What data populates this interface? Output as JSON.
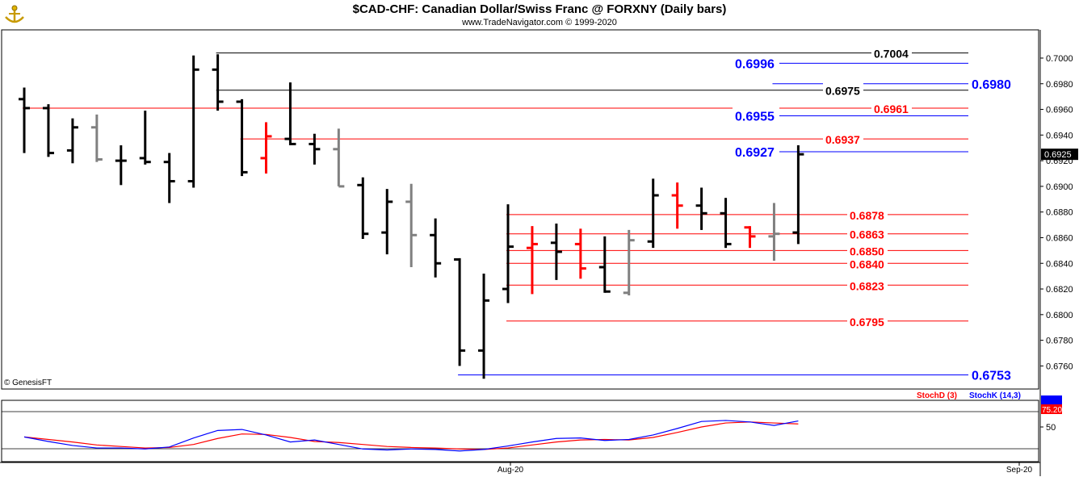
{
  "header": {
    "title": "$CAD-CHF:  Canadian Dollar/Swiss Franc @ FORXNY  (Daily bars)",
    "subtitle": "www.TradeNavigator.com © 1999-2020"
  },
  "copyright": "© GenesisFT",
  "colors": {
    "bar_black": "#000000",
    "bar_red": "#ff0000",
    "bar_gray": "#808080",
    "blue": "#0000ff",
    "red": "#ff0000",
    "black": "#000000",
    "price_panel_bg": "#ffffff"
  },
  "chart_data": [
    {
      "type": "ohlc",
      "title": "$CAD-CHF:  Canadian Dollar/Swiss Franc @ FORXNY  (Daily bars)",
      "ylim": [
        0.6742,
        0.7022
      ],
      "y_ticks": [
        "0.7000",
        "0.6980",
        "0.6960",
        "0.6940",
        "0.6920",
        "0.6900",
        "0.6880",
        "0.6860",
        "0.6840",
        "0.6820",
        "0.6800",
        "0.6780",
        "0.6760"
      ],
      "x_ticks": [
        "Aug-20",
        "Sep-20"
      ],
      "last_price": "0.6925",
      "bars": [
        {
          "o": 0.6968,
          "h": 0.6977,
          "l": 0.6926,
          "c": 0.6961,
          "color": "black"
        },
        {
          "o": 0.6961,
          "h": 0.6964,
          "l": 0.6923,
          "c": 0.6926,
          "color": "black"
        },
        {
          "o": 0.6928,
          "h": 0.6953,
          "l": 0.6918,
          "c": 0.6946,
          "color": "black"
        },
        {
          "o": 0.6946,
          "h": 0.6956,
          "l": 0.6919,
          "c": 0.6921,
          "color": "gray"
        },
        {
          "o": 0.692,
          "h": 0.6932,
          "l": 0.6901,
          "c": 0.692,
          "color": "black"
        },
        {
          "o": 0.6922,
          "h": 0.6959,
          "l": 0.6917,
          "c": 0.6919,
          "color": "black"
        },
        {
          "o": 0.6919,
          "h": 0.6926,
          "l": 0.6887,
          "c": 0.6904,
          "color": "black"
        },
        {
          "o": 0.6904,
          "h": 0.7002,
          "l": 0.6899,
          "c": 0.6991,
          "color": "black"
        },
        {
          "o": 0.6991,
          "h": 0.7003,
          "l": 0.6959,
          "c": 0.6966,
          "color": "black"
        },
        {
          "o": 0.6966,
          "h": 0.6968,
          "l": 0.6908,
          "c": 0.6911,
          "color": "black"
        },
        {
          "o": 0.6922,
          "h": 0.695,
          "l": 0.691,
          "c": 0.6939,
          "color": "red"
        },
        {
          "o": 0.6937,
          "h": 0.6981,
          "l": 0.6932,
          "c": 0.6933,
          "color": "black"
        },
        {
          "o": 0.6933,
          "h": 0.6941,
          "l": 0.6917,
          "c": 0.6929,
          "color": "black"
        },
        {
          "o": 0.6929,
          "h": 0.6945,
          "l": 0.69,
          "c": 0.69,
          "color": "gray"
        },
        {
          "o": 0.6901,
          "h": 0.6907,
          "l": 0.6859,
          "c": 0.6863,
          "color": "black"
        },
        {
          "o": 0.6864,
          "h": 0.6898,
          "l": 0.6847,
          "c": 0.6888,
          "color": "black"
        },
        {
          "o": 0.6888,
          "h": 0.6902,
          "l": 0.6837,
          "c": 0.6862,
          "color": "gray"
        },
        {
          "o": 0.6862,
          "h": 0.6875,
          "l": 0.6829,
          "c": 0.684,
          "color": "black"
        },
        {
          "o": 0.6843,
          "h": 0.6844,
          "l": 0.676,
          "c": 0.6772,
          "color": "black"
        },
        {
          "o": 0.6772,
          "h": 0.6832,
          "l": 0.675,
          "c": 0.6811,
          "color": "black"
        },
        {
          "o": 0.682,
          "h": 0.6886,
          "l": 0.6809,
          "c": 0.6853,
          "color": "black"
        },
        {
          "o": 0.6852,
          "h": 0.6869,
          "l": 0.6816,
          "c": 0.6855,
          "color": "red"
        },
        {
          "o": 0.6856,
          "h": 0.6871,
          "l": 0.6827,
          "c": 0.6849,
          "color": "black"
        },
        {
          "o": 0.6855,
          "h": 0.6867,
          "l": 0.6828,
          "c": 0.6836,
          "color": "red"
        },
        {
          "o": 0.6837,
          "h": 0.6861,
          "l": 0.6817,
          "c": 0.6818,
          "color": "black"
        },
        {
          "o": 0.6817,
          "h": 0.6866,
          "l": 0.6815,
          "c": 0.6858,
          "color": "gray"
        },
        {
          "o": 0.6857,
          "h": 0.6906,
          "l": 0.6852,
          "c": 0.6893,
          "color": "black"
        },
        {
          "o": 0.6893,
          "h": 0.6903,
          "l": 0.6867,
          "c": 0.6885,
          "color": "red"
        },
        {
          "o": 0.6885,
          "h": 0.6899,
          "l": 0.6866,
          "c": 0.6879,
          "color": "black"
        },
        {
          "o": 0.6879,
          "h": 0.6891,
          "l": 0.6852,
          "c": 0.6855,
          "color": "black"
        },
        {
          "o": 0.6868,
          "h": 0.6869,
          "l": 0.6852,
          "c": 0.6861,
          "color": "red"
        },
        {
          "o": 0.6861,
          "h": 0.6887,
          "l": 0.6842,
          "c": 0.6863,
          "color": "gray"
        },
        {
          "o": 0.6864,
          "h": 0.6932,
          "l": 0.6855,
          "c": 0.6925,
          "color": "black"
        }
      ],
      "levels": [
        {
          "value": 0.7004,
          "label": "0.7004",
          "color": "black",
          "from_bar": 8
        },
        {
          "value": 0.6996,
          "label": "0.6996",
          "color": "blue",
          "from_bar": 31
        },
        {
          "value": 0.698,
          "label": "0.6980",
          "color": "blue",
          "from_bar": 31
        },
        {
          "value": 0.6975,
          "label": "0.6975",
          "color": "black",
          "from_bar": 8
        },
        {
          "value": 0.6961,
          "label": "0.6961",
          "color": "red",
          "from_bar": 0
        },
        {
          "value": 0.6955,
          "label": "0.6955",
          "color": "blue",
          "from_bar": 31
        },
        {
          "value": 0.6937,
          "label": "0.6937",
          "color": "red",
          "from_bar": 9
        },
        {
          "value": 0.6927,
          "label": "0.6927",
          "color": "blue",
          "from_bar": 31
        },
        {
          "value": 0.6878,
          "label": "0.6878",
          "color": "red",
          "from_bar": 20
        },
        {
          "value": 0.6863,
          "label": "0.6863",
          "color": "red",
          "from_bar": 20
        },
        {
          "value": 0.685,
          "label": "0.6850",
          "color": "red",
          "from_bar": 20
        },
        {
          "value": 0.684,
          "label": "0.6840",
          "color": "red",
          "from_bar": 20
        },
        {
          "value": 0.6823,
          "label": "0.6823",
          "color": "red",
          "from_bar": 20
        },
        {
          "value": 0.6795,
          "label": "0.6795",
          "color": "red",
          "from_bar": 20
        },
        {
          "value": 0.6753,
          "label": "0.6753",
          "color": "blue",
          "from_bar": 18
        }
      ]
    },
    {
      "type": "line",
      "title": "",
      "ylim": [
        0,
        100
      ],
      "y_ticks": [
        "50"
      ],
      "last_value_label": "75.20",
      "series": [
        {
          "name": "StochD (3)",
          "color": "red",
          "values": [
            30,
            25,
            20,
            14,
            11,
            8,
            9,
            15,
            27,
            36,
            35,
            29,
            21,
            19,
            15,
            11,
            9,
            8,
            6,
            5,
            8,
            14,
            20,
            24,
            25,
            24,
            29,
            39,
            50,
            58,
            60,
            58,
            56
          ]
        },
        {
          "name": "StochK (14,3)",
          "color": "blue",
          "values": [
            30,
            21,
            13,
            8,
            8,
            6,
            10,
            28,
            43,
            45,
            34,
            20,
            24,
            15,
            6,
            4,
            6,
            5,
            2,
            5,
            12,
            20,
            27,
            28,
            23,
            25,
            34,
            47,
            61,
            63,
            60,
            53,
            62
          ]
        }
      ]
    }
  ]
}
